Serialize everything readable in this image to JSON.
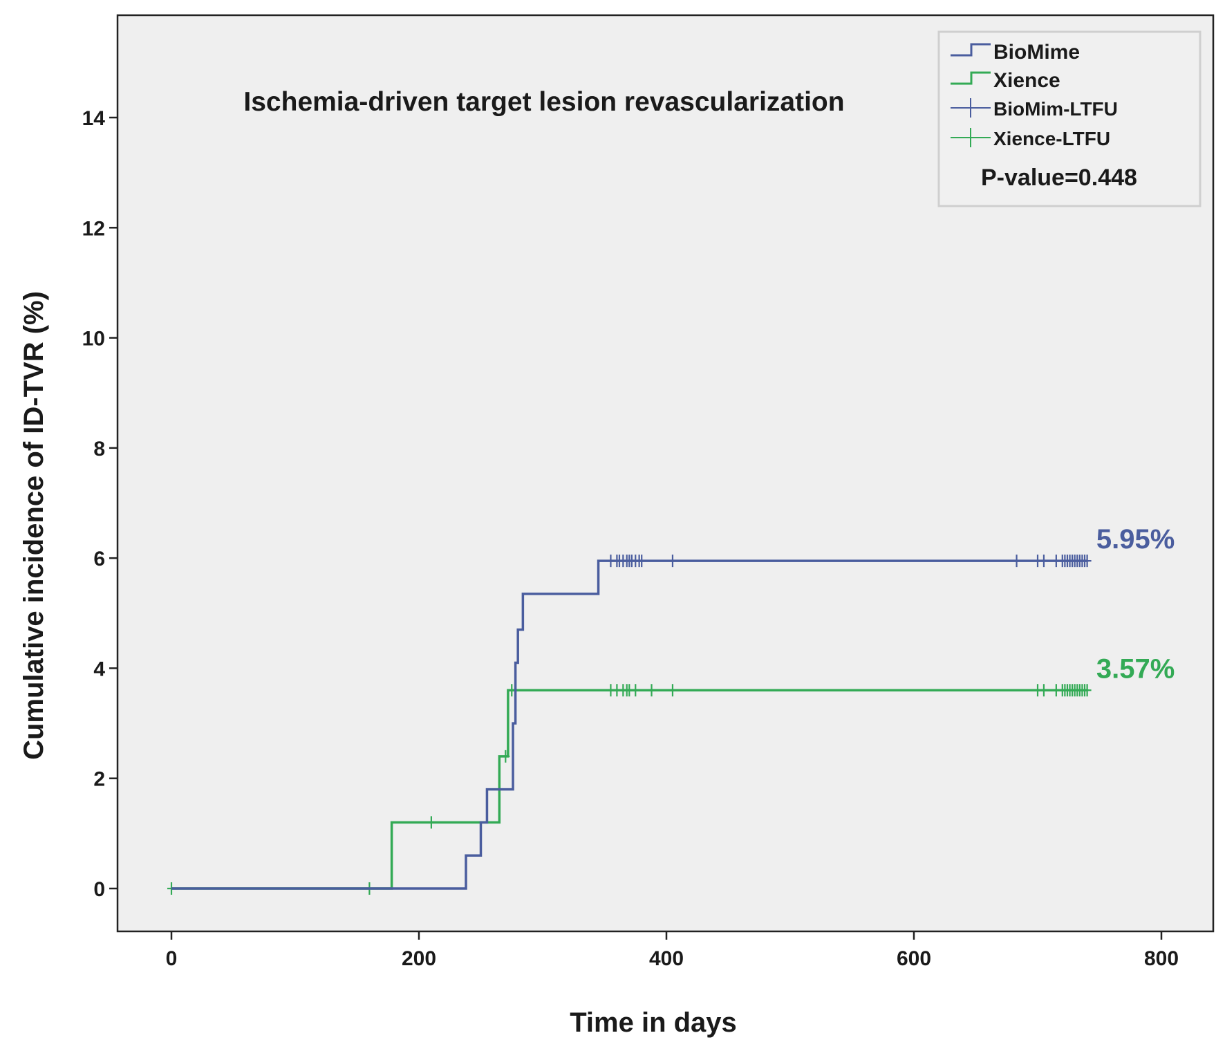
{
  "chart_data": {
    "type": "line",
    "subtype": "step",
    "title": "Ischemia-driven target lesion revascularization",
    "xlabel": "Time in days",
    "ylabel": "Cumulative incidence of ID-TVR (%)",
    "xlim": [
      -20,
      800
    ],
    "ylim": [
      -0.8,
      15.5
    ],
    "xticks": [
      0,
      200,
      400,
      600,
      800
    ],
    "yticks": [
      0,
      2,
      4,
      6,
      8,
      10,
      12,
      14
    ],
    "grid": false,
    "background": "#efefef",
    "legend": {
      "position": "top-right",
      "entries": [
        {
          "label": "BioMime",
          "kind": "line",
          "color": "#4a5d9e"
        },
        {
          "label": "Xience",
          "kind": "line",
          "color": "#33aa55"
        },
        {
          "label": "BioMim-LTFU",
          "kind": "censor",
          "color": "#4a5d9e"
        },
        {
          "label": "Xience-LTFU",
          "kind": "censor",
          "color": "#33aa55"
        }
      ],
      "p_value_text": "P-value=0.448"
    },
    "series": [
      {
        "name": "BioMime",
        "color": "#4a5d9e",
        "end_label": "5.95%",
        "steps": [
          [
            0,
            0
          ],
          [
            238,
            0.6
          ],
          [
            250,
            1.2
          ],
          [
            255,
            1.8
          ],
          [
            268,
            1.8
          ],
          [
            276,
            3.0
          ],
          [
            278,
            4.1
          ],
          [
            280,
            4.7
          ],
          [
            284,
            5.35
          ],
          [
            345,
            5.95
          ],
          [
            740,
            5.95
          ]
        ],
        "censored": [
          355,
          360,
          362,
          365,
          368,
          370,
          372,
          375,
          378,
          380,
          405,
          683,
          700,
          705,
          715,
          720,
          722,
          724,
          726,
          728,
          730,
          732,
          734,
          736,
          738,
          740
        ]
      },
      {
        "name": "Xience",
        "color": "#33aa55",
        "end_label": "3.57%",
        "steps": [
          [
            0,
            0
          ],
          [
            178,
            1.2
          ],
          [
            265,
            2.4
          ],
          [
            272,
            3.6
          ],
          [
            740,
            3.6
          ]
        ],
        "censored": [
          0,
          160,
          210,
          270,
          275,
          355,
          360,
          365,
          368,
          370,
          375,
          388,
          405,
          700,
          705,
          715,
          720,
          722,
          724,
          726,
          728,
          730,
          732,
          734,
          736,
          738,
          740
        ]
      }
    ]
  }
}
